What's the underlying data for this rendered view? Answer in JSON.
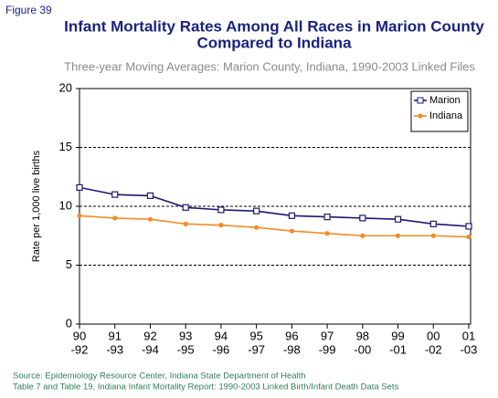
{
  "figure_label": "Figure 39",
  "chart_data": {
    "type": "line",
    "title": [
      "Infant Mortality Rates Among All Races in Marion County",
      "Compared to Indiana"
    ],
    "subtitle": "Three-year Moving Averages: Marion County, Indiana, 1990-2003 Linked Files",
    "y_label": "Rate per 1,000 live births",
    "categories": [
      [
        "90",
        "-92"
      ],
      [
        "91",
        "-93"
      ],
      [
        "92",
        "-94"
      ],
      [
        "93",
        "-95"
      ],
      [
        "94",
        "-96"
      ],
      [
        "95",
        "-97"
      ],
      [
        "96",
        "-98"
      ],
      [
        "97",
        "-99"
      ],
      [
        "98",
        "-00"
      ],
      [
        "99",
        "-01"
      ],
      [
        "00",
        "-02"
      ],
      [
        "01",
        "-03"
      ]
    ],
    "series": [
      {
        "name": "Marion",
        "color": "#1a1a6e",
        "marker": "square",
        "values": [
          11.6,
          11.0,
          10.9,
          9.9,
          9.7,
          9.6,
          9.2,
          9.1,
          9.0,
          8.9,
          8.5,
          8.3
        ]
      },
      {
        "name": "Indiana",
        "color": "#f28c28",
        "marker": "dot",
        "values": [
          9.2,
          9.0,
          8.9,
          8.5,
          8.4,
          8.2,
          7.9,
          7.7,
          7.5,
          7.5,
          7.5,
          7.4
        ]
      }
    ],
    "ylim": [
      0,
      20
    ],
    "yticks": [
      0,
      5,
      10,
      15,
      20
    ],
    "grid": true,
    "legend": "top-right",
    "source": [
      "Source: Epidemiology Resource Center, Indiana State Department of Health",
      "Table 7 and Table 19, Indiana Infant Mortality Report: 1990-2003 Linked Birth/Infant Death Data Sets"
    ]
  }
}
